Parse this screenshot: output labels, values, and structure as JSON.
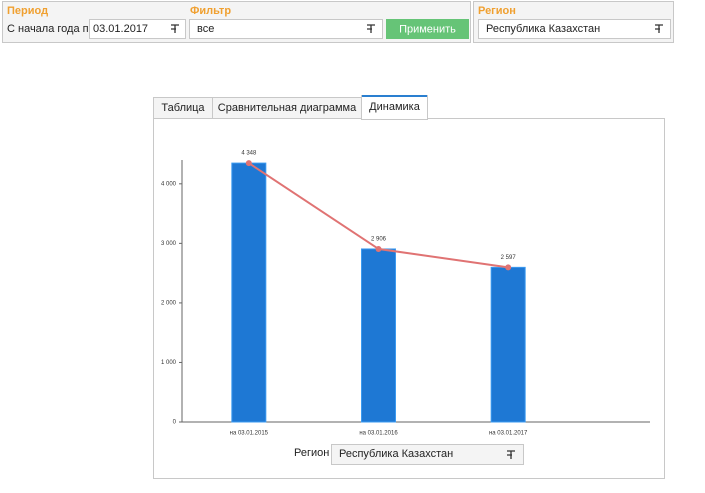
{
  "filters": {
    "period": {
      "title": "Период",
      "label": "С начала года по",
      "date": "03.01.2017"
    },
    "filter": {
      "title": "Фильтр",
      "value": "все",
      "button": "Применить"
    },
    "region": {
      "title": "Регион",
      "value": "Республика Казахстан"
    }
  },
  "tabs": [
    "Таблица",
    "Сравнительная диаграмма",
    "Динамика"
  ],
  "chart_data": {
    "type": "bar",
    "line_overlay": true,
    "categories": [
      "на 03.01.2015",
      "на 03.01.2016",
      "на 03.01.2017"
    ],
    "values": [
      4348,
      2906,
      2597
    ],
    "value_labels": [
      "4 348",
      "2 906",
      "2 597"
    ],
    "color": "#1e78d4",
    "line_color": "#e07373",
    "ylim": [
      0,
      4400
    ],
    "yticks": [
      0,
      {
        "value": 1000,
        "label": "1 000"
      },
      {
        "value": 2000,
        "label": "2 000"
      },
      {
        "value": 3000,
        "label": "3 000"
      },
      {
        "value": 4000,
        "label": "4 000"
      }
    ]
  },
  "chart_region": {
    "label": "Регион",
    "value": "Республика Казахстан"
  }
}
